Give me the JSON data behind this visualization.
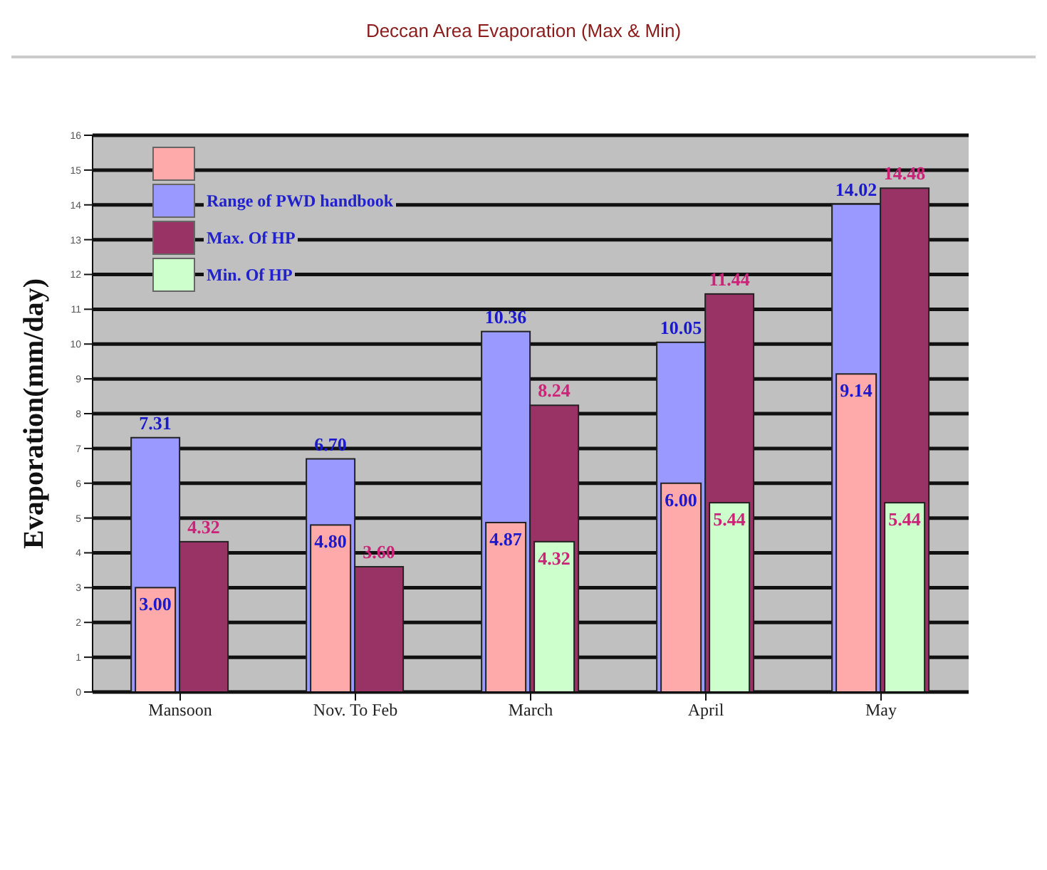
{
  "chart_data": {
    "type": "bar",
    "title": "Deccan Area Evaporation (Max & Min)",
    "ylabel": "Evaporation(mm/day)",
    "categories": [
      "Mansoon",
      "Nov. To Feb",
      "March",
      "April",
      "May"
    ],
    "ylim": [
      0,
      16
    ],
    "yticks": [
      0,
      1,
      2,
      3,
      4,
      5,
      6,
      7,
      8,
      9,
      10,
      11,
      12,
      13,
      14,
      15,
      16
    ],
    "grid": "y",
    "legend": "top left",
    "series": [
      {
        "color": "#ffaaaa",
        "values": [
          3.0,
          4.8,
          4.87,
          6.0,
          9.14
        ],
        "value_labels": [
          "3.00",
          "4.80",
          "4.87",
          "6.00",
          "9.14"
        ]
      },
      {
        "name": "Range of  PWD handbook",
        "color": "#9999ff",
        "values": [
          7.31,
          6.7,
          10.36,
          10.05,
          14.02
        ],
        "value_labels": [
          "7.31",
          "6.70",
          "10.36",
          "10.05",
          "14.02"
        ]
      },
      {
        "name": "Min. Of HP",
        "color": "#ccffcc",
        "values": [
          null,
          null,
          4.32,
          5.44,
          5.44
        ],
        "value_labels": [
          null,
          null,
          "4.32",
          "5.44",
          "5.44"
        ]
      },
      {
        "name": "Max. Of HP",
        "color": "#993366",
        "values": [
          4.32,
          3.6,
          8.24,
          11.44,
          14.48
        ],
        "value_labels": [
          "4.32",
          "3.60",
          "8.24",
          "11.44",
          "14.48"
        ]
      }
    ]
  }
}
